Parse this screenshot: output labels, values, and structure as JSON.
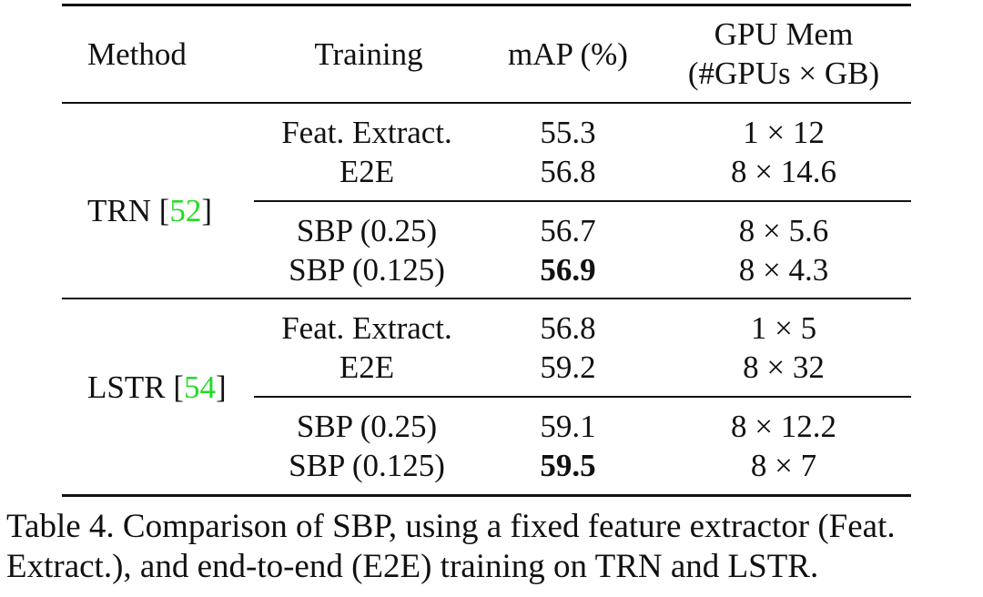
{
  "table": {
    "headers": {
      "method": "Method",
      "training": "Training",
      "map": "mAP (%)",
      "gpu_mem_line1": "GPU Mem",
      "gpu_mem_line2": "(#GPUs × GB)"
    },
    "groups": [
      {
        "method": "TRN",
        "ref_open": "[",
        "ref": "52",
        "ref_close": "]",
        "rows": [
          {
            "training": "Feat. Extract.",
            "map": "55.3",
            "gpu": "1 × 12",
            "best": false
          },
          {
            "training": "E2E",
            "map": "56.8",
            "gpu": "8 × 14.6",
            "best": false
          },
          {
            "training": "SBP (0.25)",
            "map": "56.7",
            "gpu": "8 × 5.6",
            "best": false
          },
          {
            "training": "SBP (0.125)",
            "map": "56.9",
            "gpu": "8 × 4.3",
            "best": true
          }
        ]
      },
      {
        "method": "LSTR",
        "ref_open": "[",
        "ref": "54",
        "ref_close": "]",
        "rows": [
          {
            "training": "Feat. Extract.",
            "map": "56.8",
            "gpu": "1 × 5",
            "best": false
          },
          {
            "training": "E2E",
            "map": "59.2",
            "gpu": "8 × 32",
            "best": false
          },
          {
            "training": "SBP (0.25)",
            "map": "59.1",
            "gpu": "8 × 12.2",
            "best": false
          },
          {
            "training": "SBP (0.125)",
            "map": "59.5",
            "gpu": "8 × 7",
            "best": true
          }
        ]
      }
    ]
  },
  "caption": {
    "line1": "Table 4. Comparison of SBP, using a fixed feature extractor (Feat.",
    "line2": "Extract.), and end-to-end (E2E) training on TRN and LSTR."
  },
  "colors": {
    "text": "#111111",
    "citation": "#22dd22"
  }
}
